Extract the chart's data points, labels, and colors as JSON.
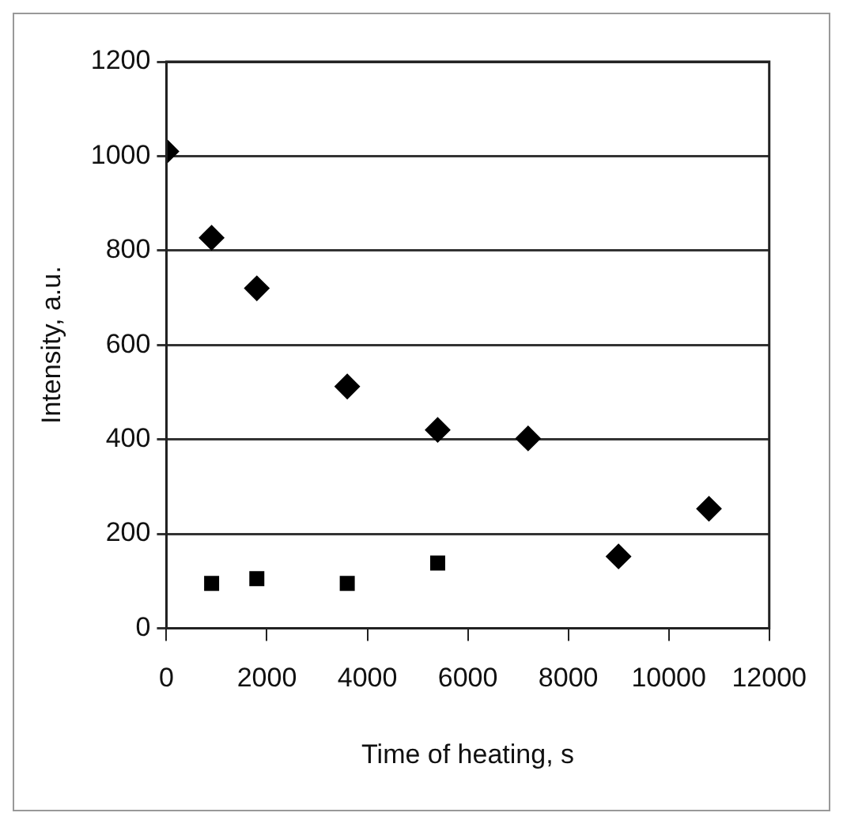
{
  "chart_data": {
    "type": "scatter",
    "xlabel": "Time of heating, s",
    "ylabel": "Intensity, a.u.",
    "series": [
      {
        "x": [
          0,
          900,
          1800,
          3600,
          5400,
          7200,
          9000,
          10800
        ],
        "values": [
          1010,
          827,
          720,
          512,
          420,
          402,
          152,
          253
        ],
        "color": "#000000",
        "marker": "diamond"
      },
      {
        "x": [
          900,
          1800,
          3600,
          5400
        ],
        "values": [
          95,
          105,
          95,
          138
        ],
        "color": "#000000",
        "marker": "square"
      }
    ],
    "xlim": [
      0,
      12000
    ],
    "xticks": [
      0,
      2000,
      4000,
      6000,
      8000,
      10000,
      12000
    ],
    "ylim": [
      0,
      1200
    ],
    "yticks": [
      0,
      200,
      400,
      600,
      800,
      1000,
      1200
    ],
    "grid": "y",
    "legend": false
  }
}
